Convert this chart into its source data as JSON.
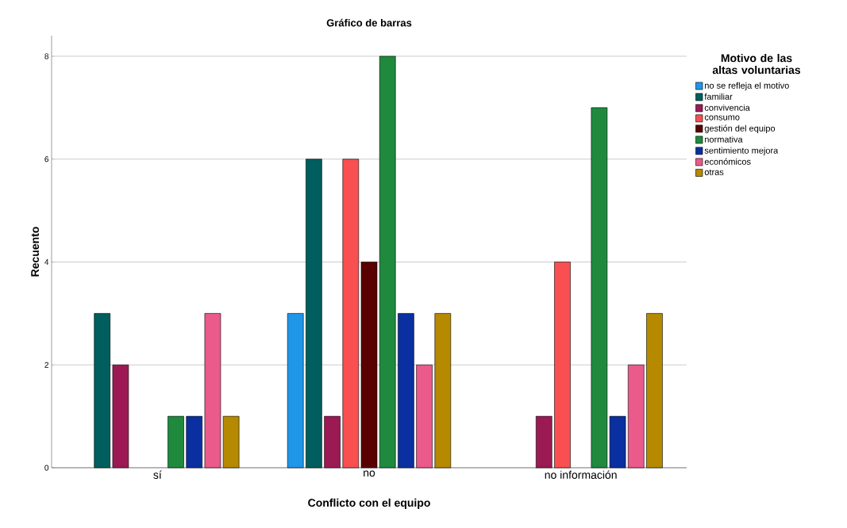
{
  "chart_data": {
    "type": "bar",
    "title": "Gráfico de barras",
    "xlabel": "Conflicto con el equipo",
    "ylabel": "Recuento",
    "legend_title": "Motivo de las altas voluntarias",
    "categories": [
      "sí",
      "no",
      "no información"
    ],
    "series": [
      {
        "name": "no se refleja el motivo",
        "color": "#1f96e8",
        "values": [
          null,
          3,
          null
        ]
      },
      {
        "name": "familiar",
        "color": "#005e5e",
        "values": [
          3,
          6,
          null
        ]
      },
      {
        "name": "convivencia",
        "color": "#9c1a54",
        "values": [
          2,
          1,
          1
        ]
      },
      {
        "name": "consumo",
        "color": "#f94f50",
        "values": [
          null,
          6,
          4
        ]
      },
      {
        "name": "gestión del equipo",
        "color": "#5a0000",
        "values": [
          null,
          4,
          null
        ]
      },
      {
        "name": "normativa",
        "color": "#1f8a3e",
        "values": [
          1,
          8,
          7
        ]
      },
      {
        "name": "sentimiento mejora",
        "color": "#0a2fa0",
        "values": [
          1,
          3,
          1
        ]
      },
      {
        "name": "económicos",
        "color": "#ea5a8a",
        "values": [
          3,
          2,
          2
        ]
      },
      {
        "name": "otras",
        "color": "#b58900",
        "values": [
          1,
          3,
          3
        ]
      }
    ],
    "ylim": [
      0,
      8.4
    ],
    "yticks": [
      0,
      2,
      4,
      6,
      8
    ],
    "grid": "y",
    "legend": "right"
  }
}
